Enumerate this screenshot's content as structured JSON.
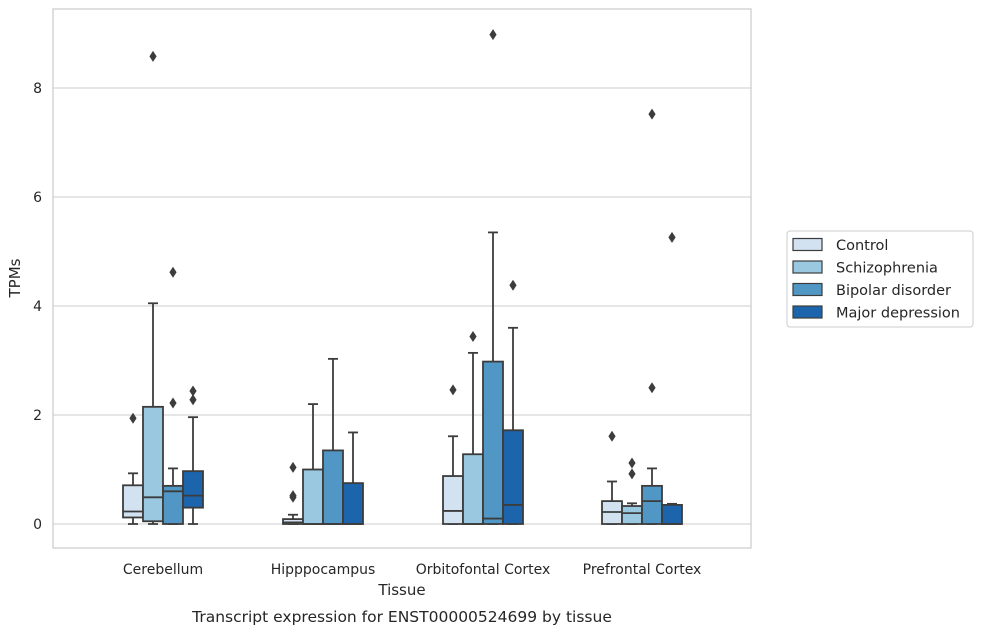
{
  "chart_data": {
    "type": "boxplot",
    "caption": "Transcript expression for ENST00000524699 by tissue",
    "xlabel": "Tissue",
    "ylabel": "TPMs",
    "ylim": [
      -0.45,
      9.65
    ],
    "yticks": [
      0,
      2,
      4,
      6,
      8
    ],
    "grid": "horizontal",
    "legend_position": "right",
    "categories": [
      "Cerebellum",
      "Hipppocampus",
      "Orbitofontal Cortex",
      "Prefrontal Cortex"
    ],
    "series": [
      {
        "name": "Control",
        "color": "#d2e2f1",
        "boxes": [
          {
            "whisker_low": 0.0,
            "q1": 0.12,
            "median": 0.23,
            "q3": 0.71,
            "whisker_high": 0.93,
            "outliers": [
              1.94
            ]
          },
          {
            "whisker_low": 0.0,
            "q1": 0.0,
            "median": 0.03,
            "q3": 0.09,
            "whisker_high": 0.17,
            "outliers": [
              0.49,
              0.52,
              1.04
            ]
          },
          {
            "whisker_low": 0.0,
            "q1": 0.0,
            "median": 0.24,
            "q3": 0.88,
            "whisker_high": 1.61,
            "outliers": [
              2.46
            ]
          },
          {
            "whisker_low": 0.0,
            "q1": 0.0,
            "median": 0.22,
            "q3": 0.42,
            "whisker_high": 0.78,
            "outliers": [
              1.61
            ]
          }
        ]
      },
      {
        "name": "Schizophrenia",
        "color": "#9ac8e0",
        "boxes": [
          {
            "whisker_low": 0.0,
            "q1": 0.05,
            "median": 0.49,
            "q3": 2.15,
            "whisker_high": 4.05,
            "outliers": [
              8.58
            ]
          },
          {
            "whisker_low": 0.0,
            "q1": 0.0,
            "median": 0.0,
            "q3": 1.0,
            "whisker_high": 2.2,
            "outliers": []
          },
          {
            "whisker_low": 0.0,
            "q1": 0.0,
            "median": 0.0,
            "q3": 1.28,
            "whisker_high": 3.14,
            "outliers": [
              3.44
            ]
          },
          {
            "whisker_low": 0.0,
            "q1": 0.0,
            "median": 0.2,
            "q3": 0.33,
            "whisker_high": 0.38,
            "outliers": [
              0.92,
              1.12
            ]
          }
        ]
      },
      {
        "name": "Bipolar disorder",
        "color": "#5097c6",
        "boxes": [
          {
            "whisker_low": 0.0,
            "q1": 0.0,
            "median": 0.6,
            "q3": 0.7,
            "whisker_high": 1.02,
            "outliers": [
              2.22,
              4.62
            ]
          },
          {
            "whisker_low": 0.0,
            "q1": 0.0,
            "median": 0.0,
            "q3": 1.35,
            "whisker_high": 3.03,
            "outliers": []
          },
          {
            "whisker_low": 0.0,
            "q1": 0.0,
            "median": 0.1,
            "q3": 2.98,
            "whisker_high": 5.35,
            "outliers": [
              8.98
            ]
          },
          {
            "whisker_low": 0.0,
            "q1": 0.0,
            "median": 0.42,
            "q3": 0.7,
            "whisker_high": 1.02,
            "outliers": [
              2.5,
              7.52
            ]
          }
        ]
      },
      {
        "name": "Major depression",
        "color": "#1c64ab",
        "boxes": [
          {
            "whisker_low": 0.0,
            "q1": 0.3,
            "median": 0.52,
            "q3": 0.97,
            "whisker_high": 1.96,
            "outliers": [
              2.28,
              2.44
            ]
          },
          {
            "whisker_low": 0.0,
            "q1": 0.0,
            "median": 0.0,
            "q3": 0.75,
            "whisker_high": 1.68,
            "outliers": []
          },
          {
            "whisker_low": 0.0,
            "q1": 0.0,
            "median": 0.35,
            "q3": 1.72,
            "whisker_high": 3.6,
            "outliers": [
              4.38
            ]
          },
          {
            "whisker_low": 0.0,
            "q1": 0.0,
            "median": 0.0,
            "q3": 0.35,
            "whisker_high": 0.37,
            "outliers": [
              5.26
            ]
          }
        ]
      }
    ]
  }
}
